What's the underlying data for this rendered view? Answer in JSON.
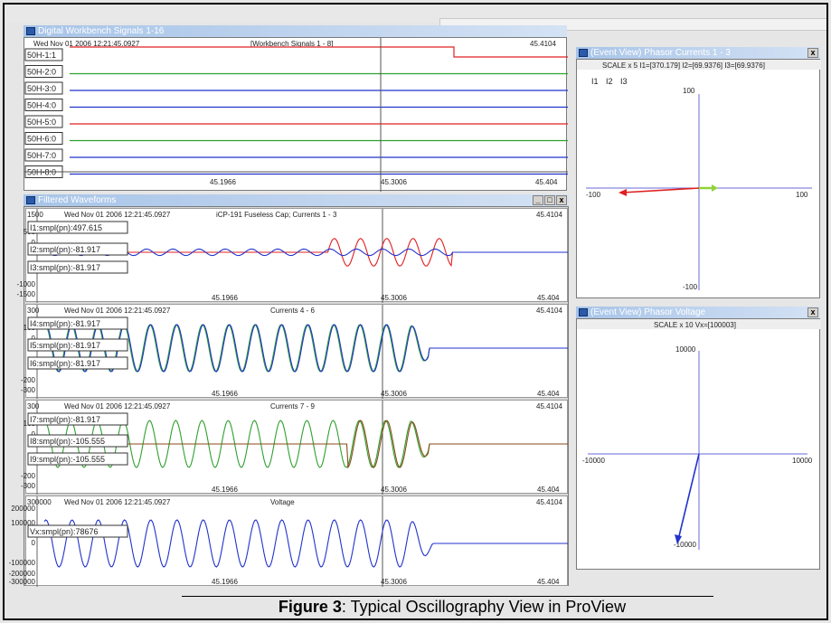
{
  "digital": {
    "title": "Digital Workbench Signals 1-16",
    "timestamp": "Wed Nov 01 2006 12:21:45.0927",
    "header": "[Workbench Signals 1 - 8]",
    "right_time": "45.4104",
    "signals": [
      "50H-1:1",
      "50H-2:0",
      "50H-3:0",
      "50H-4:0",
      "50H-5:0",
      "50H-6:0",
      "50H-7:0",
      "50H-8:0"
    ],
    "x_ticks": [
      "45.1966",
      "45.3006",
      "45.404"
    ]
  },
  "filtered": {
    "title": "Filtered Waveforms",
    "panels": [
      {
        "timestamp": "Wed Nov 01 2006 12:21:45.0927",
        "top_value": "1500",
        "header": "iCP-191 Fuseless Cap; Currents 1 - 3",
        "right_time": "45.4104",
        "y_ticks": [
          "500",
          "0",
          "-1000",
          "-1500"
        ],
        "boxes": [
          "I1:smpl(pn):497.615",
          "I2:smpl(pn):-81.917",
          "I3:smpl(pn):-81.917"
        ],
        "x_ticks": [
          "45.1966",
          "45.3006",
          "45.404"
        ]
      },
      {
        "timestamp": "Wed Nov 01 2006 12:21:45.0927",
        "top_value": "300",
        "header": "Currents 4 - 6",
        "right_time": "45.4104",
        "y_ticks": [
          "100",
          "0",
          "-200",
          "-300"
        ],
        "boxes": [
          "I4:smpl(pn):-81.917",
          "I5:smpl(pn):-81.917",
          "I6:smpl(pn):-81.917"
        ],
        "x_ticks": [
          "45.1966",
          "45.3006",
          "45.404"
        ]
      },
      {
        "timestamp": "Wed Nov 01 2006 12:21:45.0927",
        "top_value": "300",
        "header": "Currents 7 - 9",
        "right_time": "45.4104",
        "y_ticks": [
          "100",
          "0",
          "-200",
          "-300"
        ],
        "boxes": [
          "I7:smpl(pn):-81.917",
          "I8:smpl(pn):-105.555",
          "I9:smpl(pn):-105.555"
        ],
        "x_ticks": [
          "45.1966",
          "45.3006",
          "45.404"
        ]
      },
      {
        "timestamp": "Wed Nov 01 2006 12:21:45.0927",
        "top_value": "300000",
        "header": "Voltage",
        "right_time": "45.4104",
        "y_ticks": [
          "200000",
          "100000",
          "0",
          "-100000",
          "-200000",
          "-300000"
        ],
        "boxes": [
          "Vx:smpl(pn):78676"
        ],
        "x_ticks": [
          "45.1966",
          "45.3006",
          "45.404"
        ]
      }
    ]
  },
  "phasor_currents": {
    "title": "(Event View) Phasor Currents 1 - 3",
    "scale": "SCALE x 5   I1=[370.179]   I2=[69.9376]   I3=[69.9376]",
    "legend": [
      "I1",
      "I2",
      "I3"
    ],
    "legend_colors": [
      "#e02020",
      "#2ea02e",
      "#2233cc"
    ],
    "axis": {
      "top": "100",
      "bottom": "-100",
      "left": "-100",
      "right": "100"
    }
  },
  "phasor_voltage": {
    "title": "(Event View) Phasor Voltage",
    "scale": "SCALE x 10   Vx=[100003]",
    "axis": {
      "top": "10000",
      "bottom": "-10000",
      "left": "-10000",
      "right": "10000"
    }
  },
  "caption": {
    "label": "Figure 3",
    "text": ": Typical Oscillography View in ProView"
  },
  "colors": {
    "red": "#e02020",
    "green": "#2ea02e",
    "blue": "#2233cc",
    "brown": "#8a4a1a"
  }
}
